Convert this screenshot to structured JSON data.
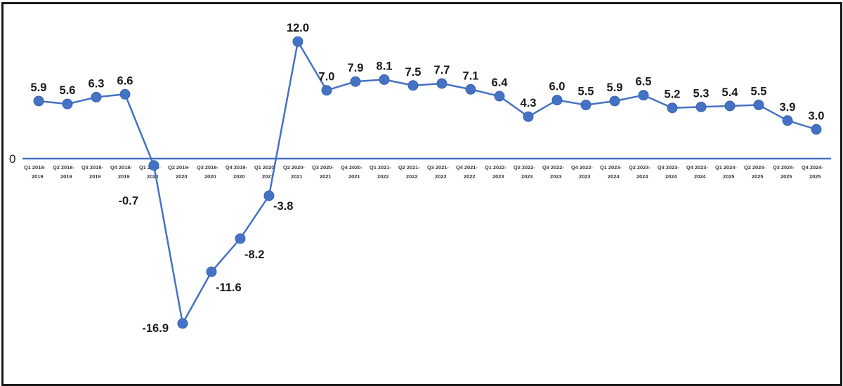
{
  "chart_data": {
    "type": "line",
    "title": "",
    "xlabel": "",
    "ylabel": "",
    "y_zero_label": "0",
    "grid": false,
    "legend": "none",
    "ylim": [
      -16.9,
      12.0
    ],
    "series_color": "#4472C4",
    "zero_line_color": "#4472C4",
    "categories": [
      [
        "Q1 2018-",
        "2019"
      ],
      [
        "Q2 2018-",
        "2019"
      ],
      [
        "Q3 2018-",
        "2019"
      ],
      [
        "Q4 2018-",
        "2019"
      ],
      [
        "Q1 2019-",
        "2020"
      ],
      [
        "Q2 2019-",
        "2020"
      ],
      [
        "Q3 2019-",
        "2020"
      ],
      [
        "Q4 2019-",
        "2020"
      ],
      [
        "Q1 2020-",
        "2021"
      ],
      [
        "Q2 2020-",
        "2021"
      ],
      [
        "Q3 2020-",
        "2021"
      ],
      [
        "Q4 2020-",
        "2021"
      ],
      [
        "Q1 2021-",
        "2022"
      ],
      [
        "Q2 2021-",
        "2022"
      ],
      [
        "Q3 2021-",
        "2022"
      ],
      [
        "Q4 2021-",
        "2022"
      ],
      [
        "Q1 2022-",
        "2023"
      ],
      [
        "Q2 2022-",
        "2023"
      ],
      [
        "Q3 2022-",
        "2023"
      ],
      [
        "Q4 2022-",
        "2023"
      ],
      [
        "Q1 2023-",
        "2024"
      ],
      [
        "Q2 2023-",
        "2024"
      ],
      [
        "Q3 2023-",
        "2024"
      ],
      [
        "Q4 2023-",
        "2024"
      ],
      [
        "Q1 2024-",
        "2025"
      ],
      [
        "Q2 2024-",
        "2025"
      ],
      [
        "Q3 2024-",
        "2025"
      ],
      [
        "Q4 2024-",
        "2025"
      ]
    ],
    "values": [
      5.9,
      5.6,
      6.3,
      6.6,
      -0.7,
      -16.9,
      -11.6,
      -8.2,
      -3.8,
      12.0,
      7.0,
      7.9,
      8.1,
      7.5,
      7.7,
      7.1,
      6.4,
      4.3,
      6.0,
      5.5,
      5.9,
      6.5,
      5.2,
      5.3,
      5.4,
      5.5,
      3.9,
      3.0
    ],
    "value_labels": [
      "5.9",
      "5.6",
      "6.3",
      "6.6",
      "-0.7",
      "-16.9",
      "-11.6",
      "-8.2",
      "-3.8",
      "12.0",
      "7.0",
      "7.9",
      "8.1",
      "7.5",
      "7.7",
      "7.1",
      "6.4",
      "4.3",
      "6.0",
      "5.5",
      "5.9",
      "6.5",
      "5.2",
      "5.3",
      "5.4",
      "5.5",
      "3.9",
      "3.0"
    ]
  }
}
